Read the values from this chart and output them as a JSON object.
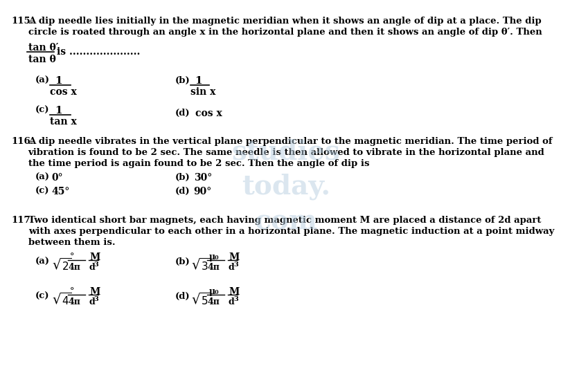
{
  "bg_color": "#ffffff",
  "text_color": "#000000",
  "q115_text1": "A dip needle lies initially in the magnetic meridian when it shows an angle of dip at a place. The dip",
  "q115_text2": "circle is roated through an angle x in the horizontal plane and then it shows an angle of dip θ′. Then",
  "q116_text1": "A dip needle vibrates in the vertical plane perpendicular to the magnetic meridian. The time period of",
  "q116_text2": "vibration is found to be 2 sec. The same needle is then allowed to vibrate in the horizontal plane and",
  "q116_text3": "the time period is again found to be 2 sec. Then the angle of dip is",
  "q117_text1": "Two identical short bar magnets, each having magnetic moment M are placed a distance of 2d apart",
  "q117_text2": "with axes perpendicular to each other in a horizontal plane. The magnetic induction at a point midway",
  "q117_text3": "between them is."
}
